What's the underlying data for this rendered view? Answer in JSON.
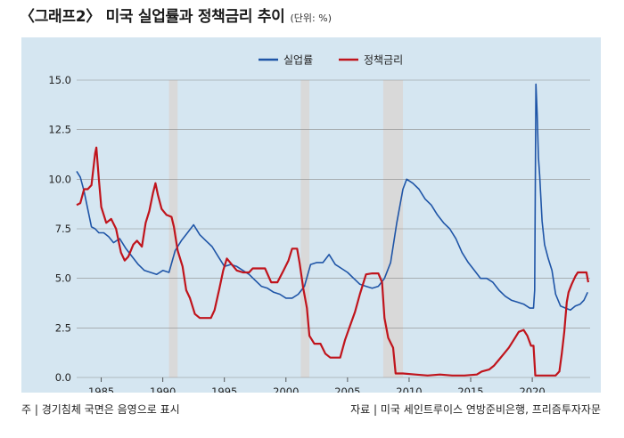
{
  "title": "〈그래프2〉 미국 실업률과 정책금리 추이",
  "unit": "(단위: %)",
  "footer_left": "주 | 경기침체 국면은 음영으로 표시",
  "footer_right": "자료 | 미국 세인트루이스 연방준비은행, 프리즘투자자문",
  "colors": {
    "unemployment": "#1f55a7",
    "policy_rate": "#c0141c",
    "background": "#d5e6f1",
    "recession": "#d9d9d9",
    "grid": "#8c8c8c"
  },
  "chart_data": {
    "type": "line",
    "xlim": [
      1983.0,
      2024.7
    ],
    "ylim": [
      0,
      15
    ],
    "yticks": [
      "0.0",
      "2.5",
      "5.0",
      "7.5",
      "10.0",
      "12.5",
      "15.0"
    ],
    "xticks": [
      "1985",
      "1990",
      "1995",
      "2000",
      "2005",
      "2010",
      "2015",
      "2020"
    ],
    "grid": "horizontal",
    "legend_position": "top-center",
    "recessions": [
      [
        1990.5,
        1991.2
      ],
      [
        2001.2,
        2001.9
      ],
      [
        2007.9,
        2009.5
      ]
    ],
    "series": [
      {
        "name": "실업률",
        "color_key": "unemployment",
        "points": [
          [
            1983.0,
            10.4
          ],
          [
            1983.3,
            10.1
          ],
          [
            1983.6,
            9.4
          ],
          [
            1983.9,
            8.5
          ],
          [
            1984.2,
            7.6
          ],
          [
            1984.5,
            7.5
          ],
          [
            1984.8,
            7.3
          ],
          [
            1985.2,
            7.3
          ],
          [
            1985.6,
            7.1
          ],
          [
            1986.0,
            6.8
          ],
          [
            1986.5,
            7.0
          ],
          [
            1987.0,
            6.5
          ],
          [
            1987.5,
            6.1
          ],
          [
            1988.0,
            5.7
          ],
          [
            1988.5,
            5.4
          ],
          [
            1989.0,
            5.3
          ],
          [
            1989.5,
            5.2
          ],
          [
            1990.0,
            5.4
          ],
          [
            1990.5,
            5.3
          ],
          [
            1991.0,
            6.4
          ],
          [
            1991.5,
            6.9
          ],
          [
            1992.0,
            7.3
          ],
          [
            1992.5,
            7.7
          ],
          [
            1993.0,
            7.2
          ],
          [
            1993.5,
            6.9
          ],
          [
            1994.0,
            6.6
          ],
          [
            1994.5,
            6.1
          ],
          [
            1995.0,
            5.6
          ],
          [
            1995.5,
            5.7
          ],
          [
            1996.0,
            5.6
          ],
          [
            1996.5,
            5.4
          ],
          [
            1997.0,
            5.2
          ],
          [
            1997.5,
            4.9
          ],
          [
            1998.0,
            4.6
          ],
          [
            1998.5,
            4.5
          ],
          [
            1999.0,
            4.3
          ],
          [
            1999.5,
            4.2
          ],
          [
            2000.0,
            4.0
          ],
          [
            2000.5,
            4.0
          ],
          [
            2001.0,
            4.2
          ],
          [
            2001.5,
            4.6
          ],
          [
            2002.0,
            5.7
          ],
          [
            2002.5,
            5.8
          ],
          [
            2003.0,
            5.8
          ],
          [
            2003.5,
            6.2
          ],
          [
            2004.0,
            5.7
          ],
          [
            2004.5,
            5.5
          ],
          [
            2005.0,
            5.3
          ],
          [
            2005.5,
            5.0
          ],
          [
            2006.0,
            4.7
          ],
          [
            2006.5,
            4.6
          ],
          [
            2007.0,
            4.5
          ],
          [
            2007.5,
            4.6
          ],
          [
            2008.0,
            5.0
          ],
          [
            2008.5,
            5.8
          ],
          [
            2009.0,
            7.8
          ],
          [
            2009.5,
            9.5
          ],
          [
            2009.8,
            10.0
          ],
          [
            2010.3,
            9.8
          ],
          [
            2010.8,
            9.5
          ],
          [
            2011.3,
            9.0
          ],
          [
            2011.8,
            8.7
          ],
          [
            2012.3,
            8.2
          ],
          [
            2012.8,
            7.8
          ],
          [
            2013.3,
            7.5
          ],
          [
            2013.8,
            7.0
          ],
          [
            2014.3,
            6.3
          ],
          [
            2014.8,
            5.8
          ],
          [
            2015.3,
            5.4
          ],
          [
            2015.8,
            5.0
          ],
          [
            2016.3,
            5.0
          ],
          [
            2016.8,
            4.8
          ],
          [
            2017.3,
            4.4
          ],
          [
            2017.8,
            4.1
          ],
          [
            2018.3,
            3.9
          ],
          [
            2018.8,
            3.8
          ],
          [
            2019.3,
            3.7
          ],
          [
            2019.8,
            3.5
          ],
          [
            2020.1,
            3.5
          ],
          [
            2020.2,
            4.4
          ],
          [
            2020.3,
            14.8
          ],
          [
            2020.4,
            13.3
          ],
          [
            2020.5,
            11.1
          ],
          [
            2020.6,
            10.2
          ],
          [
            2020.8,
            7.9
          ],
          [
            2021.0,
            6.7
          ],
          [
            2021.3,
            6.0
          ],
          [
            2021.6,
            5.4
          ],
          [
            2021.9,
            4.2
          ],
          [
            2022.3,
            3.6
          ],
          [
            2022.7,
            3.5
          ],
          [
            2023.1,
            3.4
          ],
          [
            2023.5,
            3.6
          ],
          [
            2023.9,
            3.7
          ],
          [
            2024.2,
            3.9
          ],
          [
            2024.5,
            4.3
          ]
        ]
      },
      {
        "name": "정책금리",
        "color_key": "policy_rate",
        "points": [
          [
            1983.0,
            8.7
          ],
          [
            1983.3,
            8.8
          ],
          [
            1983.6,
            9.5
          ],
          [
            1983.9,
            9.5
          ],
          [
            1984.2,
            9.7
          ],
          [
            1984.5,
            11.3
          ],
          [
            1984.6,
            11.6
          ],
          [
            1984.8,
            10.0
          ],
          [
            1985.0,
            8.6
          ],
          [
            1985.4,
            7.8
          ],
          [
            1985.8,
            8.0
          ],
          [
            1986.2,
            7.5
          ],
          [
            1986.6,
            6.3
          ],
          [
            1986.9,
            5.9
          ],
          [
            1987.2,
            6.1
          ],
          [
            1987.6,
            6.7
          ],
          [
            1987.9,
            6.9
          ],
          [
            1988.3,
            6.6
          ],
          [
            1988.6,
            7.8
          ],
          [
            1988.9,
            8.4
          ],
          [
            1989.2,
            9.3
          ],
          [
            1989.4,
            9.8
          ],
          [
            1989.6,
            9.2
          ],
          [
            1989.9,
            8.5
          ],
          [
            1990.3,
            8.2
          ],
          [
            1990.7,
            8.1
          ],
          [
            1990.9,
            7.6
          ],
          [
            1991.2,
            6.4
          ],
          [
            1991.6,
            5.6
          ],
          [
            1991.9,
            4.4
          ],
          [
            1992.2,
            4.0
          ],
          [
            1992.6,
            3.2
          ],
          [
            1993.0,
            3.0
          ],
          [
            1993.5,
            3.0
          ],
          [
            1993.9,
            3.0
          ],
          [
            1994.2,
            3.4
          ],
          [
            1994.6,
            4.5
          ],
          [
            1994.9,
            5.4
          ],
          [
            1995.2,
            6.0
          ],
          [
            1995.6,
            5.7
          ],
          [
            1996.0,
            5.4
          ],
          [
            1996.5,
            5.3
          ],
          [
            1997.0,
            5.3
          ],
          [
            1997.3,
            5.5
          ],
          [
            1997.8,
            5.5
          ],
          [
            1998.3,
            5.5
          ],
          [
            1998.8,
            4.8
          ],
          [
            1999.3,
            4.8
          ],
          [
            1999.8,
            5.4
          ],
          [
            2000.2,
            5.9
          ],
          [
            2000.5,
            6.5
          ],
          [
            2000.9,
            6.5
          ],
          [
            2001.1,
            5.8
          ],
          [
            2001.4,
            4.5
          ],
          [
            2001.7,
            3.5
          ],
          [
            2001.9,
            2.1
          ],
          [
            2002.3,
            1.7
          ],
          [
            2002.8,
            1.7
          ],
          [
            2003.2,
            1.2
          ],
          [
            2003.6,
            1.0
          ],
          [
            2004.0,
            1.0
          ],
          [
            2004.4,
            1.0
          ],
          [
            2004.8,
            1.9
          ],
          [
            2005.2,
            2.6
          ],
          [
            2005.6,
            3.3
          ],
          [
            2006.0,
            4.2
          ],
          [
            2006.5,
            5.2
          ],
          [
            2007.0,
            5.25
          ],
          [
            2007.5,
            5.25
          ],
          [
            2007.8,
            4.8
          ],
          [
            2008.0,
            3.0
          ],
          [
            2008.3,
            2.0
          ],
          [
            2008.7,
            1.5
          ],
          [
            2008.9,
            0.2
          ],
          [
            2009.5,
            0.2
          ],
          [
            2010.5,
            0.15
          ],
          [
            2011.5,
            0.1
          ],
          [
            2012.5,
            0.15
          ],
          [
            2013.5,
            0.1
          ],
          [
            2014.5,
            0.1
          ],
          [
            2015.5,
            0.15
          ],
          [
            2015.9,
            0.3
          ],
          [
            2016.5,
            0.4
          ],
          [
            2016.9,
            0.6
          ],
          [
            2017.3,
            0.9
          ],
          [
            2017.7,
            1.2
          ],
          [
            2018.1,
            1.5
          ],
          [
            2018.5,
            1.9
          ],
          [
            2018.9,
            2.3
          ],
          [
            2019.3,
            2.4
          ],
          [
            2019.6,
            2.1
          ],
          [
            2019.9,
            1.6
          ],
          [
            2020.1,
            1.6
          ],
          [
            2020.25,
            0.1
          ],
          [
            2021.0,
            0.1
          ],
          [
            2021.9,
            0.1
          ],
          [
            2022.2,
            0.3
          ],
          [
            2022.4,
            1.2
          ],
          [
            2022.6,
            2.3
          ],
          [
            2022.8,
            3.8
          ],
          [
            2022.95,
            4.3
          ],
          [
            2023.2,
            4.7
          ],
          [
            2023.5,
            5.1
          ],
          [
            2023.7,
            5.3
          ],
          [
            2024.0,
            5.3
          ],
          [
            2024.4,
            5.3
          ],
          [
            2024.55,
            4.8
          ]
        ]
      }
    ]
  }
}
